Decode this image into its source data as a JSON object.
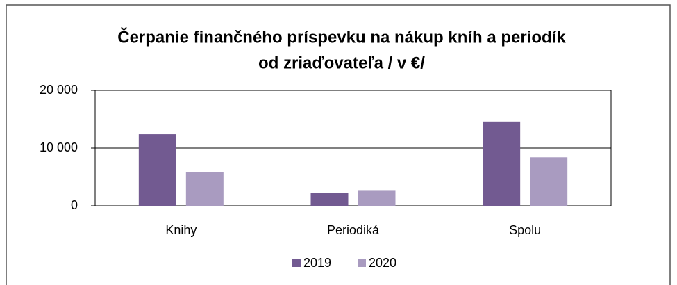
{
  "chart_data": {
    "type": "bar",
    "title": [
      "Čerpanie finančného príspevku na nákup kníh a periodík",
      "od  zriaďovateľa   / v €/"
    ],
    "categories": [
      "Knihy",
      "Periodiká",
      "Spolu"
    ],
    "series": [
      {
        "name": "2019",
        "color": "#725a91",
        "values": [
          12400,
          2200,
          14600
        ]
      },
      {
        "name": "2020",
        "color": "#a99bc0",
        "values": [
          5800,
          2600,
          8400
        ]
      }
    ],
    "ylim": [
      0,
      20000
    ],
    "yticks": [
      {
        "value": 0,
        "label": "0"
      },
      {
        "value": 10000,
        "label": "10 000"
      },
      {
        "value": 20000,
        "label": "20 000"
      }
    ],
    "grid": true,
    "legend": "bottom"
  }
}
